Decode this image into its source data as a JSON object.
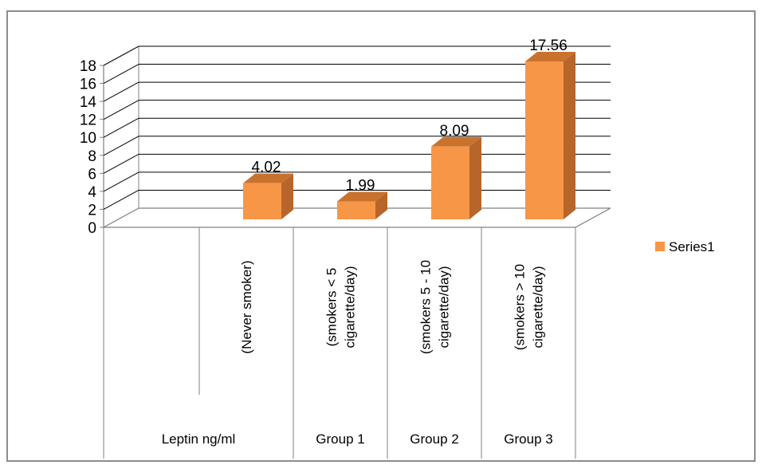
{
  "chart_data": {
    "type": "bar",
    "title": "",
    "xlabel": "",
    "ylabel": "",
    "ylim": [
      0,
      18
    ],
    "yticks": [
      0,
      2,
      4,
      6,
      8,
      10,
      12,
      14,
      16,
      18
    ],
    "grid": true,
    "legend_position": "right",
    "categories": [
      {
        "inner": "(Never smoker)",
        "outer": "Leptin ng/ml"
      },
      {
        "inner": "(smokers < 5 cigarette/day)",
        "outer": "Group 1"
      },
      {
        "inner": "(smokers 5 - 10 cigarette/day)",
        "outer": "Group 2"
      },
      {
        "inner": "(smokers > 10 cigarette/day)",
        "outer": "Group 3"
      }
    ],
    "inner_label_lines": [
      [
        "(Never smoker)"
      ],
      [
        "(smokers < 5",
        "cigarette/day)"
      ],
      [
        "(smokers 5 - 10",
        "cigarette/day)"
      ],
      [
        "(smokers > 10",
        "cigarette/day)"
      ]
    ],
    "series": [
      {
        "name": "Series1",
        "values": [
          4.02,
          1.99,
          8.09,
          17.56
        ]
      }
    ],
    "data_labels": [
      "4.02",
      "1.99",
      "8.09",
      "17.56"
    ],
    "colors": {
      "bar_front": "#F79646",
      "bar_side": "#B7652A",
      "bar_top": "#C9722E",
      "grid": "#000000",
      "axis": "#808080"
    }
  }
}
